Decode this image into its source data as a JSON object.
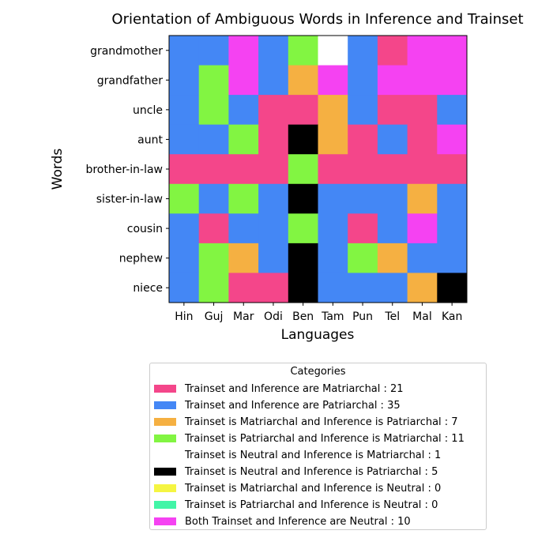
{
  "chart_data": {
    "type": "heatmap",
    "title": "Orientation of Ambiguous Words in Inference and Trainset",
    "xlabel": "Languages",
    "ylabel": "Words",
    "x_categories": [
      "Hin",
      "Guj",
      "Mar",
      "Odi",
      "Ben",
      "Tam",
      "Pun",
      "Tel",
      "Mal",
      "Kan"
    ],
    "y_categories": [
      "grandmother",
      "grandfather",
      "uncle",
      "aunt",
      "brother-in-law",
      "sister-in-law",
      "cousin",
      "nephew",
      "niece"
    ],
    "categories": [
      {
        "key": "M",
        "label": "Trainset and Inference are Matriarchal : 21",
        "color": "#f4468a"
      },
      {
        "key": "P",
        "label": "Trainset and Inference are Patriarchal : 35",
        "color": "#4487f5"
      },
      {
        "key": "MP",
        "label": "Trainset is Matriarchal and Inference is Patriarchal : 7",
        "color": "#f5b042"
      },
      {
        "key": "PM",
        "label": "Trainset is Patriarchal and Inference is Matriarchal : 11",
        "color": "#82f542"
      },
      {
        "key": "NM",
        "label": "Trainset is Neutral and Inference is Matriarchal : 1",
        "color": "#ffffff"
      },
      {
        "key": "NP",
        "label": "Trainset is Neutral and Inference is Patriarchal : 5",
        "color": "#000000"
      },
      {
        "key": "MN",
        "label": "Trainset is Matriarchal and Inference is Neutral : 0",
        "color": "#f5f542"
      },
      {
        "key": "PN",
        "label": "Trainset is Patriarchal and Inference is Neutral : 0",
        "color": "#42f5a7"
      },
      {
        "key": "N",
        "label": "Both Trainset and Inference are Neutral : 10",
        "color": "#f542f2"
      }
    ],
    "cells": [
      [
        "P",
        "P",
        "N",
        "P",
        "PM",
        "NM",
        "P",
        "M",
        "N",
        "N"
      ],
      [
        "P",
        "PM",
        "N",
        "P",
        "MP",
        "N",
        "P",
        "N",
        "N",
        "N"
      ],
      [
        "P",
        "PM",
        "P",
        "M",
        "M",
        "MP",
        "P",
        "M",
        "M",
        "P"
      ],
      [
        "P",
        "P",
        "PM",
        "M",
        "NP",
        "MP",
        "M",
        "P",
        "M",
        "N"
      ],
      [
        "M",
        "M",
        "M",
        "M",
        "PM",
        "M",
        "M",
        "M",
        "M",
        "M"
      ],
      [
        "PM",
        "P",
        "PM",
        "P",
        "NP",
        "P",
        "P",
        "P",
        "MP",
        "P"
      ],
      [
        "P",
        "M",
        "P",
        "P",
        "PM",
        "P",
        "M",
        "P",
        "N",
        "P"
      ],
      [
        "P",
        "PM",
        "MP",
        "P",
        "NP",
        "P",
        "PM",
        "MP",
        "P",
        "P"
      ],
      [
        "P",
        "PM",
        "M",
        "M",
        "NP",
        "P",
        "P",
        "P",
        "MP",
        "NP"
      ]
    ],
    "legend_title": "Categories",
    "legend_position": "bottom-center"
  }
}
